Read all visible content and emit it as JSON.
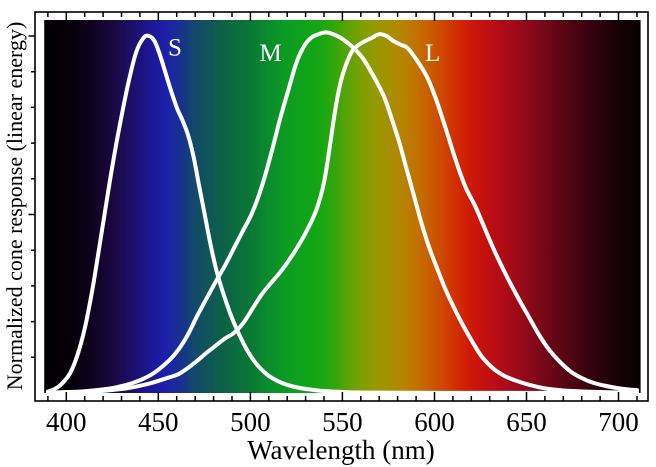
{
  "chart_data": {
    "type": "line",
    "title": "",
    "xlabel": "Wavelength (nm)",
    "ylabel": "Normalized cone response (linear energy)",
    "x_unit": "nm",
    "xlim": [
      383,
      716
    ],
    "ylim": [
      0,
      1.067
    ],
    "grid": false,
    "legend_position": "inline-annotations",
    "x_major_ticks": [
      400,
      450,
      500,
      550,
      600,
      650,
      700
    ],
    "x_tick_labels": [
      "400",
      "450",
      "500",
      "550",
      "600",
      "650",
      "700"
    ],
    "x_minor_ticks": [
      390,
      410,
      420,
      430,
      440,
      460,
      470,
      480,
      490,
      510,
      520,
      530,
      540,
      560,
      570,
      580,
      590,
      610,
      620,
      630,
      640,
      660,
      670,
      680,
      690,
      710
    ],
    "y_minor_ticks": [
      0.1,
      0.2,
      0.3,
      0.4,
      0.6,
      0.7,
      0.8,
      0.9
    ],
    "y_major_ticks": [
      0.5,
      1.0
    ],
    "curve_color": "#ffffff",
    "frame_color": "#000000",
    "annotations": [
      {
        "text": "S",
        "wavelength": 459,
        "value": 0.968
      },
      {
        "text": "M",
        "wavelength": 511,
        "value": 0.952
      },
      {
        "text": "L",
        "wavelength": 599,
        "value": 0.952
      }
    ],
    "series": [
      {
        "name": "S",
        "peak_nm": 443,
        "points": [
          [
            390,
            0.004
          ],
          [
            394,
            0.012
          ],
          [
            398,
            0.028
          ],
          [
            402,
            0.055
          ],
          [
            406,
            0.105
          ],
          [
            410,
            0.18
          ],
          [
            414,
            0.285
          ],
          [
            418,
            0.41
          ],
          [
            422,
            0.54
          ],
          [
            426,
            0.665
          ],
          [
            430,
            0.775
          ],
          [
            434,
            0.875
          ],
          [
            438,
            0.955
          ],
          [
            442,
            0.995
          ],
          [
            445,
            1.0
          ],
          [
            448,
            0.985
          ],
          [
            451,
            0.945
          ],
          [
            454,
            0.895
          ],
          [
            457,
            0.845
          ],
          [
            460,
            0.8
          ],
          [
            463,
            0.765
          ],
          [
            466,
            0.725
          ],
          [
            469,
            0.665
          ],
          [
            472,
            0.585
          ],
          [
            475,
            0.505
          ],
          [
            478,
            0.425
          ],
          [
            481,
            0.355
          ],
          [
            484,
            0.3
          ],
          [
            487,
            0.253
          ],
          [
            490,
            0.21
          ],
          [
            494,
            0.163
          ],
          [
            498,
            0.122
          ],
          [
            502,
            0.09
          ],
          [
            506,
            0.066
          ],
          [
            510,
            0.048
          ],
          [
            515,
            0.033
          ],
          [
            520,
            0.023
          ],
          [
            526,
            0.015
          ],
          [
            532,
            0.01
          ],
          [
            538,
            0.0065
          ],
          [
            545,
            0.004
          ],
          [
            552,
            0.0025
          ],
          [
            560,
            0.0015
          ],
          [
            570,
            0.001
          ],
          [
            585,
            0.0006
          ],
          [
            605,
            0.0004
          ],
          [
            640,
            0.0003
          ],
          [
            680,
            0.0002
          ],
          [
            710,
            0.0002
          ]
        ]
      },
      {
        "name": "M",
        "peak_nm": 543,
        "points": [
          [
            390,
            0.001
          ],
          [
            400,
            0.0025
          ],
          [
            410,
            0.005
          ],
          [
            420,
            0.01
          ],
          [
            428,
            0.017
          ],
          [
            436,
            0.028
          ],
          [
            444,
            0.045
          ],
          [
            450,
            0.065
          ],
          [
            456,
            0.092
          ],
          [
            461,
            0.122
          ],
          [
            466,
            0.163
          ],
          [
            471,
            0.215
          ],
          [
            476,
            0.263
          ],
          [
            481,
            0.31
          ],
          [
            486,
            0.355
          ],
          [
            491,
            0.405
          ],
          [
            496,
            0.455
          ],
          [
            501,
            0.505
          ],
          [
            506,
            0.575
          ],
          [
            511,
            0.665
          ],
          [
            516,
            0.765
          ],
          [
            521,
            0.855
          ],
          [
            525,
            0.925
          ],
          [
            529,
            0.97
          ],
          [
            533,
            0.995
          ],
          [
            537,
            1.005
          ],
          [
            541,
            1.01
          ],
          [
            545,
            1.005
          ],
          [
            549,
            0.995
          ],
          [
            553,
            0.98
          ],
          [
            557,
            0.962
          ],
          [
            561,
            0.938
          ],
          [
            565,
            0.905
          ],
          [
            569,
            0.868
          ],
          [
            573,
            0.825
          ],
          [
            577,
            0.765
          ],
          [
            581,
            0.7
          ],
          [
            585,
            0.625
          ],
          [
            589,
            0.55
          ],
          [
            593,
            0.475
          ],
          [
            597,
            0.41
          ],
          [
            601,
            0.355
          ],
          [
            606,
            0.29
          ],
          [
            611,
            0.235
          ],
          [
            616,
            0.185
          ],
          [
            621,
            0.14
          ],
          [
            626,
            0.1
          ],
          [
            632,
            0.068
          ],
          [
            638,
            0.048
          ],
          [
            644,
            0.035
          ],
          [
            652,
            0.022
          ],
          [
            660,
            0.013
          ],
          [
            670,
            0.007
          ],
          [
            682,
            0.004
          ],
          [
            695,
            0.002
          ],
          [
            710,
            0.001
          ]
        ]
      },
      {
        "name": "L",
        "peak_nm": 570,
        "points": [
          [
            390,
            0.001
          ],
          [
            400,
            0.002
          ],
          [
            410,
            0.0035
          ],
          [
            420,
            0.006
          ],
          [
            428,
            0.01
          ],
          [
            436,
            0.016
          ],
          [
            444,
            0.025
          ],
          [
            450,
            0.034
          ],
          [
            456,
            0.044
          ],
          [
            461,
            0.053
          ],
          [
            466,
            0.07
          ],
          [
            471,
            0.09
          ],
          [
            476,
            0.112
          ],
          [
            481,
            0.132
          ],
          [
            486,
            0.152
          ],
          [
            491,
            0.168
          ],
          [
            496,
            0.195
          ],
          [
            501,
            0.235
          ],
          [
            506,
            0.275
          ],
          [
            511,
            0.307
          ],
          [
            516,
            0.337
          ],
          [
            521,
            0.372
          ],
          [
            526,
            0.412
          ],
          [
            531,
            0.458
          ],
          [
            536,
            0.515
          ],
          [
            540,
            0.59
          ],
          [
            543,
            0.685
          ],
          [
            546,
            0.79
          ],
          [
            549,
            0.87
          ],
          [
            552,
            0.92
          ],
          [
            555,
            0.955
          ],
          [
            558,
            0.972
          ],
          [
            562,
            0.985
          ],
          [
            566,
            0.995
          ],
          [
            570,
            1.005
          ],
          [
            574,
            1.0
          ],
          [
            578,
            0.985
          ],
          [
            582,
            0.975
          ],
          [
            585,
            0.968
          ],
          [
            588,
            0.95
          ],
          [
            592,
            0.92
          ],
          [
            596,
            0.885
          ],
          [
            600,
            0.835
          ],
          [
            604,
            0.775
          ],
          [
            608,
            0.71
          ],
          [
            612,
            0.645
          ],
          [
            617,
            0.575
          ],
          [
            622,
            0.525
          ],
          [
            627,
            0.465
          ],
          [
            632,
            0.405
          ],
          [
            638,
            0.34
          ],
          [
            644,
            0.28
          ],
          [
            650,
            0.225
          ],
          [
            656,
            0.17
          ],
          [
            662,
            0.123
          ],
          [
            668,
            0.088
          ],
          [
            674,
            0.06
          ],
          [
            680,
            0.042
          ],
          [
            686,
            0.029
          ],
          [
            692,
            0.021
          ],
          [
            699,
            0.014
          ],
          [
            705,
            0.01
          ],
          [
            710,
            0.008
          ]
        ]
      }
    ],
    "spectrum_background": {
      "range_nm": [
        388,
        712
      ],
      "stops": [
        {
          "nm": 388,
          "color": "#000000"
        },
        {
          "nm": 400,
          "color": "#040006"
        },
        {
          "nm": 410,
          "color": "#0b0115"
        },
        {
          "nm": 420,
          "color": "#150530"
        },
        {
          "nm": 430,
          "color": "#1b0b52"
        },
        {
          "nm": 440,
          "color": "#1d127a"
        },
        {
          "nm": 447,
          "color": "#1d189a"
        },
        {
          "nm": 453,
          "color": "#1d1ea8"
        },
        {
          "nm": 458,
          "color": "#1b27a0"
        },
        {
          "nm": 465,
          "color": "#163982"
        },
        {
          "nm": 470,
          "color": "#134a68"
        },
        {
          "nm": 478,
          "color": "#0f5655"
        },
        {
          "nm": 485,
          "color": "#0c6147"
        },
        {
          "nm": 492,
          "color": "#0a6c3e"
        },
        {
          "nm": 500,
          "color": "#097736"
        },
        {
          "nm": 510,
          "color": "#0a8c2c"
        },
        {
          "nm": 520,
          "color": "#0c9c22"
        },
        {
          "nm": 530,
          "color": "#0fa41a"
        },
        {
          "nm": 538,
          "color": "#16a612"
        },
        {
          "nm": 545,
          "color": "#2fa60c"
        },
        {
          "nm": 552,
          "color": "#57a306"
        },
        {
          "nm": 560,
          "color": "#7ba002"
        },
        {
          "nm": 568,
          "color": "#949a01"
        },
        {
          "nm": 575,
          "color": "#a69000"
        },
        {
          "nm": 583,
          "color": "#b68300"
        },
        {
          "nm": 590,
          "color": "#c17300"
        },
        {
          "nm": 597,
          "color": "#c85f00"
        },
        {
          "nm": 604,
          "color": "#cd4800"
        },
        {
          "nm": 611,
          "color": "#d03102"
        },
        {
          "nm": 618,
          "color": "#cf1c06"
        },
        {
          "nm": 625,
          "color": "#c6120d"
        },
        {
          "nm": 633,
          "color": "#b80d14"
        },
        {
          "nm": 641,
          "color": "#a60b19"
        },
        {
          "nm": 650,
          "color": "#8f091b"
        },
        {
          "nm": 658,
          "color": "#790818"
        },
        {
          "nm": 666,
          "color": "#630615"
        },
        {
          "nm": 675,
          "color": "#4c0511"
        },
        {
          "nm": 684,
          "color": "#370310"
        },
        {
          "nm": 692,
          "color": "#26020a"
        },
        {
          "nm": 700,
          "color": "#170206"
        },
        {
          "nm": 712,
          "color": "#070101"
        }
      ]
    }
  }
}
